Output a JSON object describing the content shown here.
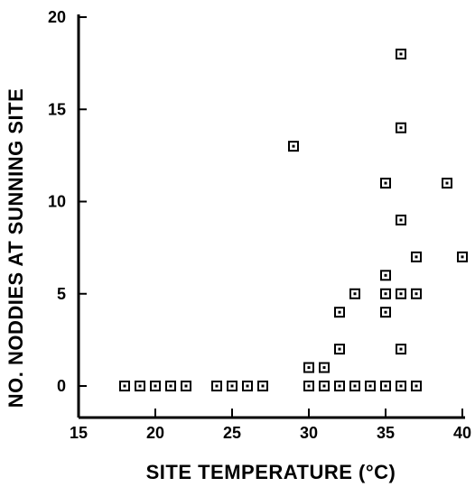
{
  "chart_data": {
    "type": "scatter",
    "title": "",
    "xlabel": "SITE TEMPERATURE (°C)",
    "ylabel": "NO. NODDIES AT SUNNING SITE",
    "xlim": [
      15,
      40
    ],
    "ylim": [
      0,
      20
    ],
    "xticks": [
      15,
      20,
      25,
      30,
      35,
      40
    ],
    "yticks": [
      0,
      5,
      10,
      15,
      20
    ],
    "grid": false,
    "legend": "none",
    "marker": "hollow-square",
    "series": [
      {
        "points": [
          [
            18,
            0
          ],
          [
            19,
            0
          ],
          [
            20,
            0
          ],
          [
            21,
            0
          ],
          [
            22,
            0
          ],
          [
            24,
            0
          ],
          [
            25,
            0
          ],
          [
            26,
            0
          ],
          [
            27,
            0
          ],
          [
            29,
            13
          ],
          [
            30,
            0
          ],
          [
            30,
            1
          ],
          [
            31,
            0
          ],
          [
            31,
            1
          ],
          [
            32,
            0
          ],
          [
            32,
            2
          ],
          [
            32,
            4
          ],
          [
            33,
            0
          ],
          [
            33,
            5
          ],
          [
            34,
            0
          ],
          [
            35,
            0
          ],
          [
            35,
            4
          ],
          [
            35,
            5
          ],
          [
            35,
            6
          ],
          [
            35,
            11
          ],
          [
            36,
            0
          ],
          [
            36,
            2
          ],
          [
            36,
            5
          ],
          [
            36,
            9
          ],
          [
            36,
            14
          ],
          [
            36,
            18
          ],
          [
            37,
            0
          ],
          [
            37,
            5
          ],
          [
            37,
            7
          ],
          [
            39,
            11
          ],
          [
            40,
            7
          ]
        ]
      }
    ]
  }
}
